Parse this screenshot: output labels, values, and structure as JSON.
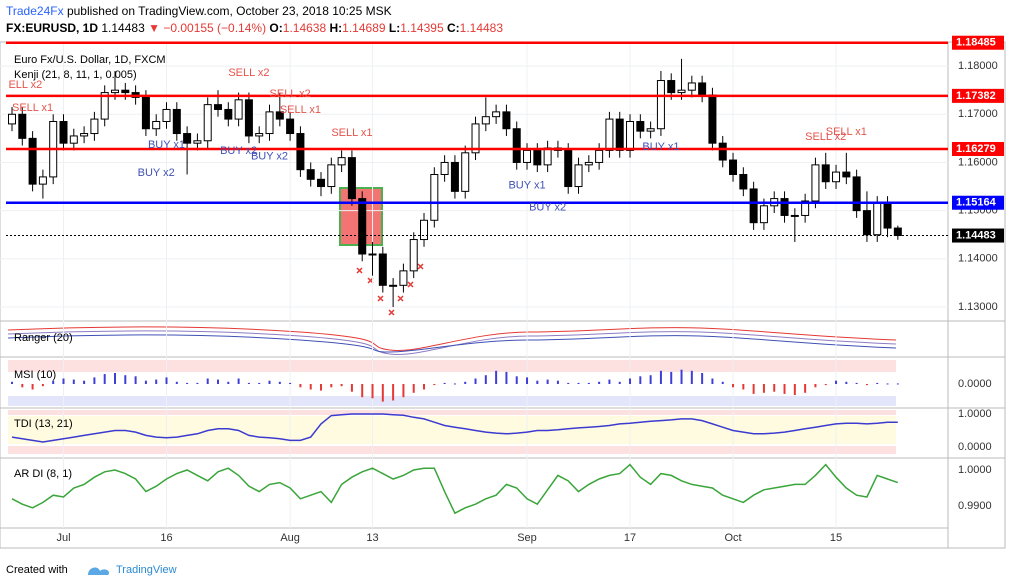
{
  "header": {
    "author": "Trade24Fx",
    "published": "published on TradingView.com, October 23, 2018 10:25 MSK",
    "symbol": "FX:EURUSD, 1D",
    "last": "1.14483",
    "arrow": "▼",
    "change": "−0.00155 (−0.14%)",
    "o_label": "O:",
    "o": "1.14638",
    "h_label": "H:",
    "h": "1.14689",
    "l_label": "L:",
    "l": "1.14395",
    "c_label": "C:",
    "c": "1.14483"
  },
  "footer": {
    "created": "Created with",
    "brand": "TradingView"
  },
  "chart_data": [
    {
      "type": "candlestick",
      "title": "Euro Fx/U.S. Dollar, 1D, FXCM",
      "subtitle": "Kenji (21, 8, 11, 1, 0.005)",
      "xlim": [
        -1.165,
        90.87
      ],
      "xticks": [
        {
          "value": 5,
          "label": "Jul"
        },
        {
          "value": 15,
          "label": "16"
        },
        {
          "value": 27,
          "label": "Aug"
        },
        {
          "value": 35,
          "label": "13"
        },
        {
          "value": 50,
          "label": "Sep"
        },
        {
          "value": 60,
          "label": "17"
        },
        {
          "value": 70,
          "label": "Oct"
        },
        {
          "value": 80,
          "label": "15"
        }
      ],
      "ylim": [
        1.1273,
        1.185
      ],
      "yticks": [
        {
          "value": 1.18,
          "label": "1.18000"
        },
        {
          "value": 1.17,
          "label": "1.17000"
        },
        {
          "value": 1.16,
          "label": "1.16000"
        },
        {
          "value": 1.15,
          "label": "1.15000"
        },
        {
          "value": 1.14,
          "label": "1.14000"
        },
        {
          "value": 1.13,
          "label": "1.13000"
        }
      ],
      "grid": true,
      "up_color": "#ffffff",
      "down_color": "#000000",
      "open": [
        1.168,
        1.17,
        1.165,
        1.1555,
        1.157,
        1.1685,
        1.164,
        1.1655,
        1.166,
        1.169,
        1.1745,
        1.175,
        1.1745,
        1.1735,
        1.167,
        1.1685,
        1.171,
        1.166,
        1.164,
        1.1645,
        1.172,
        1.171,
        1.169,
        1.173,
        1.1655,
        1.166,
        1.1705,
        1.169,
        1.166,
        1.1585,
        1.1565,
        1.155,
        1.1595,
        1.161,
        1.1525,
        1.141,
        1.141,
        1.1345,
        1.1345,
        1.1375,
        1.144,
        1.148,
        1.1575,
        1.16,
        1.154,
        1.162,
        1.168,
        1.1695,
        1.1705,
        1.167,
        1.16,
        1.1625,
        1.1595,
        1.163,
        1.1625,
        1.155,
        1.1595,
        1.16,
        1.1625,
        1.169,
        1.1625,
        1.1685,
        1.1665,
        1.167,
        1.177,
        1.1745,
        1.175,
        1.1765,
        1.174,
        1.164,
        1.1605,
        1.1575,
        1.1545,
        1.1475,
        1.151,
        1.1525,
        1.149,
        1.149,
        1.152,
        1.1595,
        1.156,
        1.158,
        1.157,
        1.15,
        1.145,
        1.1515,
        1.14638
      ],
      "high": [
        1.1715,
        1.1715,
        1.1665,
        1.1585,
        1.17,
        1.17,
        1.167,
        1.1675,
        1.1705,
        1.176,
        1.179,
        1.1765,
        1.176,
        1.175,
        1.17,
        1.1725,
        1.1725,
        1.1675,
        1.166,
        1.1735,
        1.175,
        1.1725,
        1.1745,
        1.1745,
        1.1675,
        1.172,
        1.1745,
        1.1705,
        1.1675,
        1.16,
        1.158,
        1.161,
        1.1625,
        1.1625,
        1.154,
        1.1435,
        1.1425,
        1.136,
        1.139,
        1.1455,
        1.1495,
        1.159,
        1.1615,
        1.1615,
        1.1635,
        1.1695,
        1.1735,
        1.172,
        1.172,
        1.1685,
        1.164,
        1.164,
        1.1645,
        1.1645,
        1.164,
        1.161,
        1.1615,
        1.164,
        1.1705,
        1.1705,
        1.17,
        1.17,
        1.1685,
        1.179,
        1.1785,
        1.1815,
        1.178,
        1.178,
        1.1755,
        1.1655,
        1.162,
        1.159,
        1.156,
        1.1525,
        1.154,
        1.154,
        1.1505,
        1.1535,
        1.161,
        1.162,
        1.1595,
        1.162,
        1.1585,
        1.154,
        1.153,
        1.153,
        1.14689
      ],
      "low": [
        1.1665,
        1.1635,
        1.154,
        1.1525,
        1.1555,
        1.1625,
        1.1625,
        1.164,
        1.1645,
        1.1675,
        1.173,
        1.173,
        1.172,
        1.1655,
        1.1655,
        1.167,
        1.1645,
        1.1575,
        1.1625,
        1.163,
        1.1695,
        1.1675,
        1.1675,
        1.164,
        1.164,
        1.1645,
        1.1675,
        1.1645,
        1.157,
        1.155,
        1.153,
        1.1535,
        1.158,
        1.151,
        1.1395,
        1.1365,
        1.133,
        1.13,
        1.133,
        1.136,
        1.1425,
        1.1465,
        1.156,
        1.1525,
        1.1525,
        1.1605,
        1.1665,
        1.168,
        1.1655,
        1.1585,
        1.1585,
        1.158,
        1.158,
        1.161,
        1.1535,
        1.1535,
        1.158,
        1.1585,
        1.161,
        1.161,
        1.161,
        1.165,
        1.165,
        1.1655,
        1.173,
        1.173,
        1.1735,
        1.1725,
        1.1625,
        1.159,
        1.156,
        1.153,
        1.146,
        1.146,
        1.1495,
        1.1475,
        1.1435,
        1.1475,
        1.1505,
        1.1545,
        1.1545,
        1.1555,
        1.1485,
        1.1435,
        1.1435,
        1.1445,
        1.14395
      ],
      "close": [
        1.17,
        1.165,
        1.1555,
        1.157,
        1.1685,
        1.164,
        1.1655,
        1.166,
        1.169,
        1.1745,
        1.175,
        1.1745,
        1.1735,
        1.167,
        1.1685,
        1.171,
        1.166,
        1.164,
        1.1645,
        1.172,
        1.171,
        1.169,
        1.173,
        1.1655,
        1.166,
        1.1705,
        1.169,
        1.166,
        1.1585,
        1.1565,
        1.155,
        1.1595,
        1.161,
        1.1525,
        1.141,
        1.141,
        1.1345,
        1.1345,
        1.1375,
        1.144,
        1.148,
        1.1575,
        1.16,
        1.154,
        1.162,
        1.168,
        1.1695,
        1.1705,
        1.167,
        1.16,
        1.1625,
        1.1595,
        1.163,
        1.1625,
        1.155,
        1.1595,
        1.16,
        1.1625,
        1.169,
        1.1625,
        1.1685,
        1.1665,
        1.167,
        1.177,
        1.1745,
        1.175,
        1.1765,
        1.174,
        1.164,
        1.1605,
        1.1575,
        1.1545,
        1.1475,
        1.151,
        1.1525,
        1.149,
        1.149,
        1.152,
        1.1595,
        1.156,
        1.158,
        1.157,
        1.15,
        1.145,
        1.1515,
        1.14638,
        1.14483
      ],
      "levels": [
        {
          "value": 1.18485,
          "label": "1.18485",
          "color": "#ff0000"
        },
        {
          "value": 1.17382,
          "label": "1.17382",
          "color": "#ff0000"
        },
        {
          "value": 1.16279,
          "label": "1.16279",
          "color": "#ff0000"
        },
        {
          "value": 1.15164,
          "label": "1.15164",
          "color": "#0000ff"
        },
        {
          "value": 1.14483,
          "label": "1.14483",
          "color": "#000000",
          "dashed": true
        }
      ],
      "annotations": [
        {
          "text": "ELL x2",
          "index": 1.3,
          "price": 1.1761,
          "color": "#e5534b"
        },
        {
          "text": "SELL x1",
          "index": 2,
          "price": 1.1713,
          "color": "#e5534b"
        },
        {
          "text": "SELL x2",
          "index": 23,
          "price": 1.1785,
          "color": "#e5534b"
        },
        {
          "text": "SELL x2",
          "index": 27,
          "price": 1.1742,
          "color": "#e5534b"
        },
        {
          "text": "SELL x1",
          "index": 28,
          "price": 1.1709,
          "color": "#e5534b"
        },
        {
          "text": "SELL x1",
          "index": 33,
          "price": 1.1661,
          "color": "#e5534b"
        },
        {
          "text": "SELL x2",
          "index": 79,
          "price": 1.1653,
          "color": "#e5534b"
        },
        {
          "text": "SELL x1",
          "index": 81,
          "price": 1.1663,
          "color": "#e5534b"
        },
        {
          "text": "BUY x1",
          "index": 15,
          "price": 1.1636,
          "color": "#3f51b5"
        },
        {
          "text": "BUY x2",
          "index": 14,
          "price": 1.1578,
          "color": "#3f51b5"
        },
        {
          "text": "BUY x2",
          "index": 22,
          "price": 1.1624,
          "color": "#3f51b5"
        },
        {
          "text": "BUY x2",
          "index": 25,
          "price": 1.1612,
          "color": "#3f51b5"
        },
        {
          "text": "BUY x1",
          "index": 50,
          "price": 1.1552,
          "color": "#3f51b5"
        },
        {
          "text": "BUY x2",
          "index": 52,
          "price": 1.1506,
          "color": "#3f51b5"
        },
        {
          "text": "BUY x1",
          "index": 63,
          "price": 1.1632,
          "color": "#3f51b5"
        }
      ]
    },
    {
      "type": "band",
      "title": "Ranger (20)"
    },
    {
      "type": "bar",
      "title": "MSI (10)",
      "ylim": [
        -2,
        2
      ],
      "yticks": [
        {
          "value": 0,
          "label": "0.0000"
        }
      ],
      "up_color": "#3f3fd8",
      "down_color": "#e53935",
      "values": [
        0.2,
        -0.3,
        -0.5,
        -0.2,
        0.3,
        0.5,
        0.4,
        0.3,
        0.6,
        0.9,
        1.0,
        0.8,
        0.7,
        0.3,
        0.4,
        0.6,
        0.2,
        0.1,
        0.1,
        0.5,
        0.4,
        0.2,
        0.5,
        0.1,
        0.1,
        0.3,
        0.2,
        0.1,
        -0.3,
        -0.5,
        -0.6,
        -0.3,
        -0.2,
        -0.7,
        -1.2,
        -1.3,
        -1.6,
        -1.5,
        -1.2,
        -0.8,
        -0.5,
        -0.1,
        0.1,
        0.05,
        0.2,
        0.5,
        0.8,
        1.2,
        1.1,
        0.7,
        0.6,
        0.3,
        0.4,
        0.3,
        0.1,
        0.1,
        0.1,
        0.2,
        0.4,
        0.2,
        0.5,
        0.7,
        0.8,
        1.2,
        1.1,
        1.3,
        1.2,
        1.0,
        0.5,
        0.2,
        -0.3,
        -0.5,
        -0.9,
        -0.8,
        -0.7,
        -0.9,
        -1.0,
        -0.8,
        -0.3,
        -0.1,
        0.3,
        0.2,
        0.1,
        -0.1,
        0.1,
        0.05,
        0.05
      ]
    },
    {
      "type": "line",
      "title": "TDI (13, 21)",
      "ylim": [
        -0.273,
        1.121
      ],
      "yticks": [
        {
          "value": 1,
          "label": "1.0000"
        },
        {
          "value": 0,
          "label": "0.0000"
        }
      ],
      "color": "#3b3bd1",
      "values": [
        0.3,
        0.25,
        0.2,
        0.15,
        0.2,
        0.25,
        0.3,
        0.35,
        0.4,
        0.45,
        0.5,
        0.5,
        0.45,
        0.35,
        0.3,
        0.28,
        0.3,
        0.35,
        0.4,
        0.5,
        0.55,
        0.55,
        0.5,
        0.35,
        0.3,
        0.28,
        0.25,
        0.2,
        0.2,
        0.3,
        0.7,
        0.95,
        0.98,
        1.0,
        1.0,
        1.0,
        1.0,
        0.98,
        0.96,
        0.9,
        0.85,
        0.75,
        0.65,
        0.6,
        0.55,
        0.5,
        0.45,
        0.42,
        0.4,
        0.42,
        0.45,
        0.5,
        0.5,
        0.52,
        0.55,
        0.58,
        0.6,
        0.62,
        0.65,
        0.7,
        0.72,
        0.75,
        0.78,
        0.8,
        0.82,
        0.85,
        0.85,
        0.8,
        0.7,
        0.6,
        0.5,
        0.45,
        0.4,
        0.4,
        0.42,
        0.45,
        0.5,
        0.55,
        0.6,
        0.65,
        0.7,
        0.72,
        0.72,
        0.7,
        0.72,
        0.75,
        0.75
      ]
    },
    {
      "type": "line",
      "title": "AR DI (8, 1)",
      "ylim": [
        0.9839,
        1.00278
      ],
      "yticks": [
        {
          "value": 1,
          "label": "1.0000"
        },
        {
          "value": 0.99,
          "label": "0.9900"
        }
      ],
      "color": "#3aa53a",
      "values": [
        0.992,
        0.9905,
        0.9895,
        0.991,
        0.993,
        0.9925,
        0.995,
        0.996,
        0.998,
        0.9995,
        1.0,
        0.999,
        0.9975,
        0.994,
        0.9955,
        0.9975,
        0.999,
        1.0,
        0.9985,
        0.997,
        0.9995,
        1.0005,
        0.9985,
        0.9955,
        0.994,
        0.996,
        0.9965,
        0.995,
        0.992,
        0.993,
        0.994,
        0.991,
        0.996,
        0.998,
        0.9995,
        1.0005,
        0.999,
        0.9975,
        0.9985,
        1.0,
        1.0005,
        1.0005,
        0.994,
        0.988,
        0.9895,
        0.9905,
        0.992,
        0.993,
        0.996,
        0.995,
        0.992,
        0.9905,
        0.9945,
        0.9985,
        0.997,
        0.994,
        0.996,
        0.9975,
        0.9985,
        0.999,
        1.0015,
        0.998,
        0.996,
        0.999,
        0.9985,
        0.997,
        0.996,
        0.9955,
        0.995,
        0.993,
        0.992,
        0.991,
        0.993,
        0.9945,
        0.995,
        0.9955,
        0.996,
        0.996,
        0.9985,
        1.0015,
        0.998,
        0.995,
        0.993,
        0.9925,
        0.9985,
        0.9975,
        0.9965
      ]
    }
  ]
}
